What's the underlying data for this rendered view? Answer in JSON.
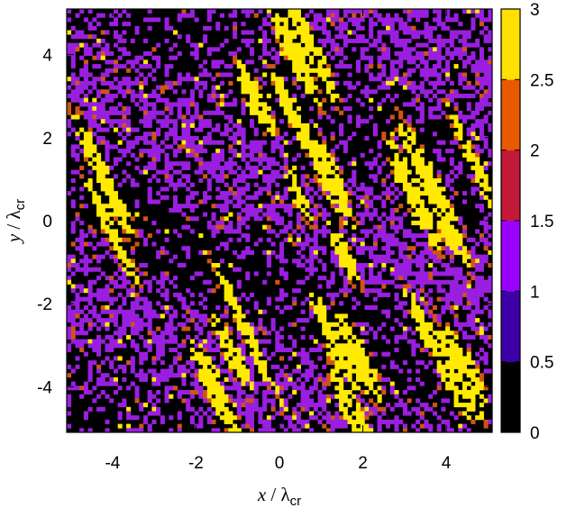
{
  "chart_data": {
    "type": "heatmap",
    "title": "",
    "xlabel": "x / λcr",
    "ylabel": "y / λcr",
    "xlabel_parts": {
      "italic": "x",
      "slash": " / ",
      "lambda": "λ",
      "sub": "cr"
    },
    "ylabel_parts": {
      "italic": "y",
      "slash": " / ",
      "lambda": "λ",
      "sub": "cr"
    },
    "xlim": [
      -5.1,
      5.1
    ],
    "ylim": [
      -5.1,
      5.1
    ],
    "x_ticks": [
      -4,
      -2,
      0,
      2,
      4
    ],
    "y_ticks": [
      -4,
      -2,
      0,
      2,
      4
    ],
    "x_tick_labels": [
      "-4",
      "-2",
      "0",
      "2",
      "4"
    ],
    "y_tick_labels": [
      "-4",
      "-2",
      "0",
      "2",
      "4"
    ],
    "grid": 100,
    "value_range": [
      0,
      3
    ],
    "colorbar": {
      "ticks": [
        0,
        0.5,
        1,
        1.5,
        2,
        2.5,
        3
      ],
      "tick_labels": [
        "0",
        "0.5",
        "1",
        "1.5",
        "2",
        "2.5",
        "3"
      ],
      "levels": 6,
      "colors": [
        "#000000",
        "#3d00a6",
        "#9a00ff",
        "#c31a3a",
        "#e95a00",
        "#ffe000"
      ]
    },
    "value_colors": {
      "0": "#000000",
      "1": "#9a1ee0",
      "2": "#d0541a",
      "3": "#ffea00"
    },
    "pattern": "diagonal streaks of high values oriented from upper-left to lower-right over a sparse speckled field",
    "colormap": "black-blue-purple-red-orange-yellow"
  }
}
